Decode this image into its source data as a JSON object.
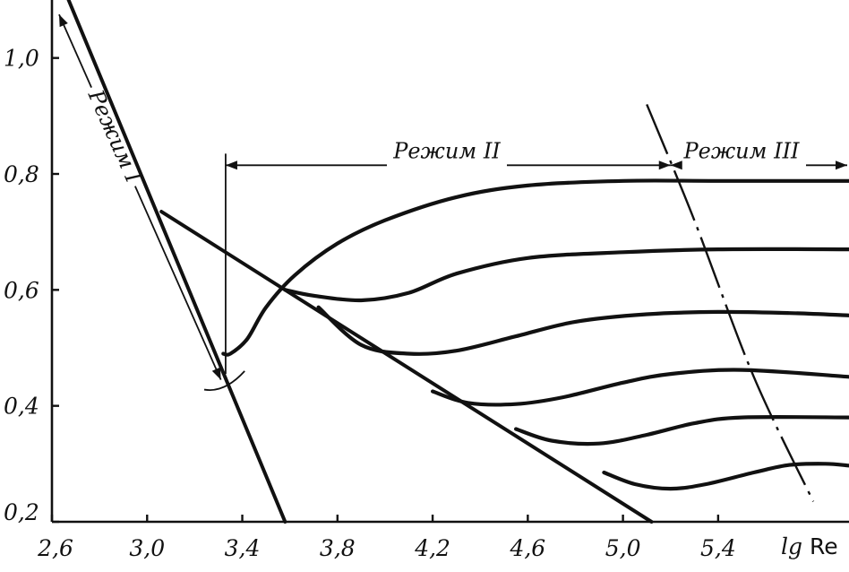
{
  "chart_data": {
    "type": "line",
    "xlabel_italic": "lg",
    "xlabel_rest": " Re",
    "xlim": [
      2.6,
      5.95
    ],
    "ylim": [
      0.2,
      1.1
    ],
    "x_ticks": [
      "2,6",
      "3,0",
      "3,4",
      "3,8",
      "4,2",
      "4,6",
      "5,0",
      "5,4"
    ],
    "y_ticks": [
      "0,2",
      "0,4",
      "0,6",
      "0,8",
      "1,0"
    ],
    "regime_labels": {
      "regime1": "Режим I",
      "regime2": "Режим II",
      "regime3": "Режим III"
    },
    "laminar_line": {
      "x": [
        2.67,
        3.58
      ],
      "y": [
        1.1,
        0.2
      ]
    },
    "envelope_line": {
      "x": [
        3.06,
        5.12
      ],
      "y": [
        0.735,
        0.2
      ]
    },
    "series": [
      {
        "x": [
          3.32,
          3.35,
          3.42,
          3.5,
          3.62,
          3.8,
          4.0,
          4.3,
          4.6,
          5.0,
          5.4,
          5.95
        ],
        "y": [
          0.49,
          0.49,
          0.515,
          0.57,
          0.625,
          0.68,
          0.72,
          0.76,
          0.78,
          0.788,
          0.788,
          0.788
        ]
      },
      {
        "x": [
          3.58,
          3.7,
          3.9,
          4.1,
          4.3,
          4.6,
          5.0,
          5.4,
          5.95
        ],
        "y": [
          0.6,
          0.59,
          0.582,
          0.595,
          0.628,
          0.655,
          0.665,
          0.67,
          0.67
        ]
      },
      {
        "x": [
          3.72,
          3.9,
          4.1,
          4.3,
          4.55,
          4.8,
          5.1,
          5.4,
          5.7,
          5.95
        ],
        "y": [
          0.57,
          0.505,
          0.49,
          0.495,
          0.52,
          0.545,
          0.558,
          0.562,
          0.56,
          0.556
        ]
      },
      {
        "x": [
          4.2,
          4.35,
          4.55,
          4.75,
          5.0,
          5.2,
          5.5,
          5.95
        ],
        "y": [
          0.425,
          0.405,
          0.403,
          0.415,
          0.44,
          0.455,
          0.462,
          0.45
        ]
      },
      {
        "x": [
          4.55,
          4.7,
          4.9,
          5.1,
          5.3,
          5.5,
          5.95
        ],
        "y": [
          0.36,
          0.34,
          0.335,
          0.35,
          0.37,
          0.38,
          0.38
        ]
      },
      {
        "x": [
          4.92,
          5.05,
          5.2,
          5.35,
          5.55,
          5.7,
          5.85,
          5.95
        ],
        "y": [
          0.285,
          0.265,
          0.257,
          0.265,
          0.285,
          0.298,
          0.3,
          0.297
        ]
      }
    ],
    "boundary_line": {
      "x": [
        5.1,
        5.3,
        5.55,
        5.8
      ],
      "y": [
        0.92,
        0.72,
        0.45,
        0.235
      ]
    },
    "regime2_span": [
      3.33,
      5.2
    ],
    "regime3_span": [
      5.2,
      5.95
    ],
    "regime_arrow_y": 0.815,
    "regime1_arrow": {
      "x": [
        2.63,
        3.31
      ],
      "y": [
        1.075,
        0.445
      ]
    },
    "regime1_separator": {
      "x": [
        3.24,
        3.41
      ],
      "y": [
        0.428,
        0.46
      ]
    },
    "grid": false
  }
}
